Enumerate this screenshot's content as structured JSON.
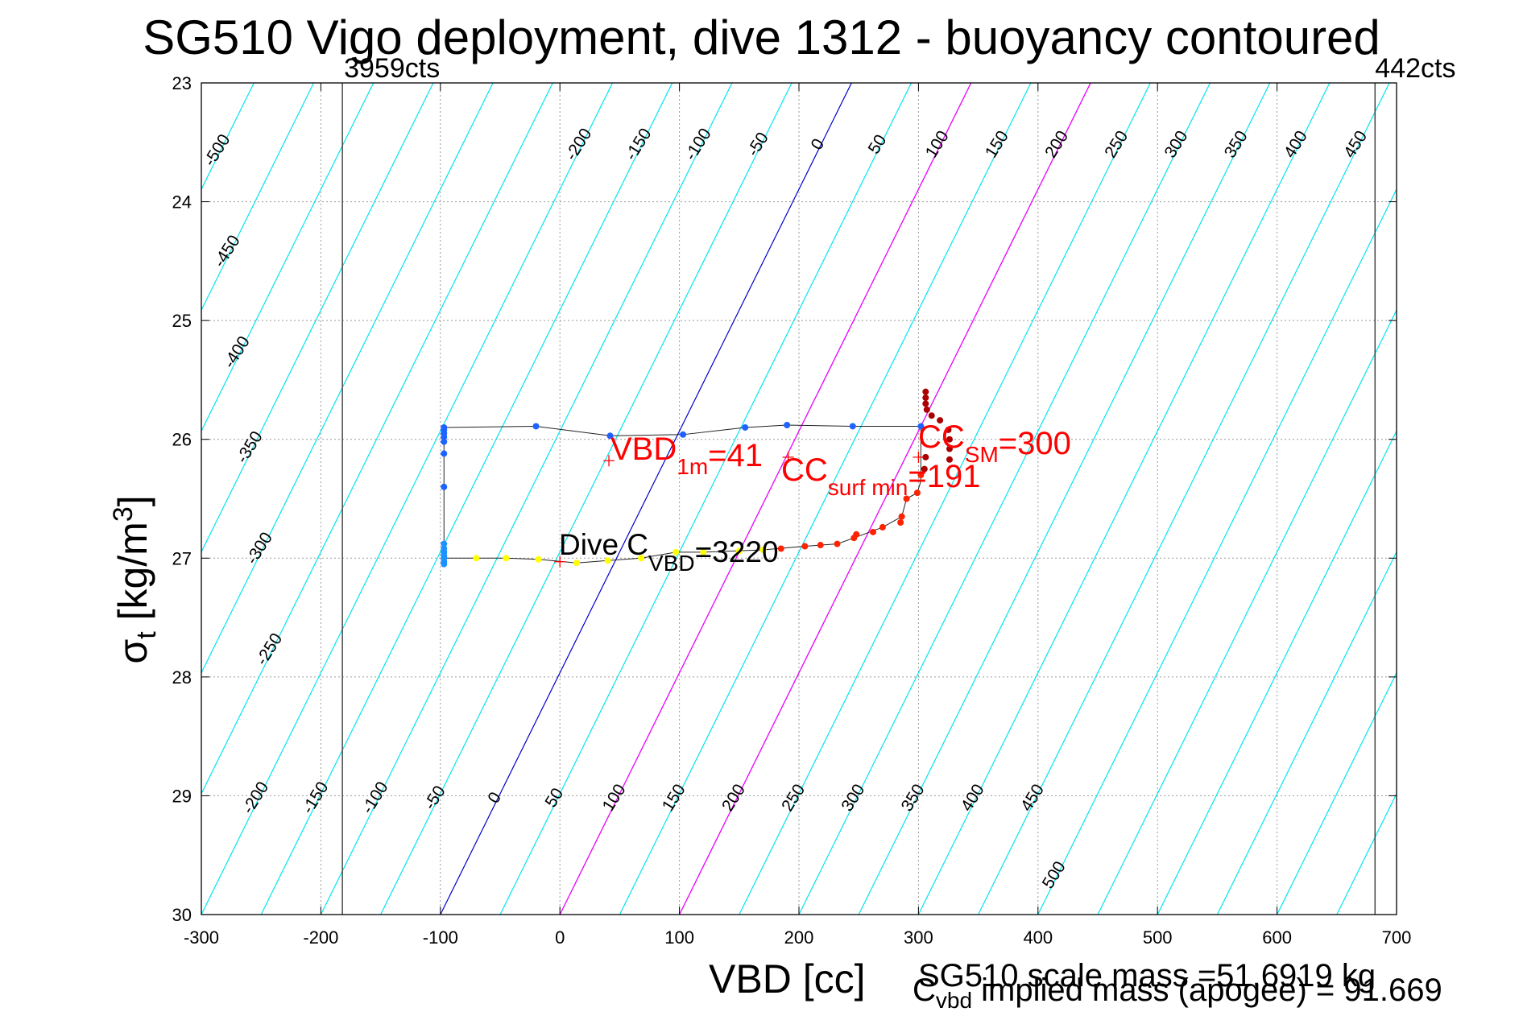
{
  "title": "SG510 Vigo deployment, dive 1312 - buoyancy contoured",
  "footer": {
    "scale_mass": "SG510 scale mass =51.6919 kg",
    "implied_mass_c": "C",
    "implied_mass_sub": "vbd",
    "implied_mass_rest": " implied mass (apogee) = 91.669"
  },
  "colors": {
    "contour": "#00e5ee",
    "zero_line": "#0000cc",
    "magenta_line": "#ff00ff",
    "grid": "#9a9a9a",
    "axis": "#000000",
    "annotation_red": "#ff0000",
    "descent_points": "#1e63ff",
    "ascent_points": "#ffff00"
  },
  "chart_data": {
    "type": "scatter",
    "title": "SG510 Vigo deployment, dive 1312 - buoyancy contoured",
    "xlabel": "VBD [cc]",
    "ylabel_main": "σ",
    "ylabel_sub": "t",
    "ylabel_unit": "[kg/m",
    "ylabel_sup": "3",
    "ylabel_close": "]",
    "xlim": [
      -300,
      700
    ],
    "ylim": [
      23,
      30
    ],
    "y_reversed": true,
    "grid": true,
    "xticks": [
      -300,
      -200,
      -100,
      0,
      100,
      200,
      300,
      400,
      500,
      600,
      700
    ],
    "yticks": [
      23,
      24,
      25,
      26,
      27,
      28,
      29,
      30
    ],
    "vertical_limits": [
      {
        "x": -182,
        "label": "3959cts"
      },
      {
        "x": 682,
        "label": "442cts"
      }
    ],
    "buoyancy_contours": {
      "levels": [
        -500,
        -450,
        -400,
        -350,
        -300,
        -250,
        -200,
        -150,
        -100,
        -50,
        0,
        50,
        100,
        150,
        200,
        250,
        300,
        350,
        400,
        450,
        500
      ],
      "vbd_at_sigma": [
        {
          "sigma": 23,
          "vbd_at_zero": 244
        },
        {
          "sigma": 30,
          "vbd_at_zero": -100
        }
      ],
      "vbd_spacing_per_50": 50,
      "special_lines": [
        {
          "color": "magenta",
          "vbd_at_sigma23": 344,
          "vbd_at_sigma30": 0
        },
        {
          "color": "magenta",
          "vbd_at_sigma23": 444,
          "vbd_at_sigma30": 100
        }
      ],
      "labels_top_row": {
        "sigma": 23.5,
        "levels": [
          -200,
          -150,
          -100,
          -50,
          0,
          50,
          100,
          150,
          200,
          250,
          300,
          350,
          400,
          450
        ]
      },
      "labels_left_column": [
        {
          "level": -500,
          "sigma": 23.55
        },
        {
          "level": -450,
          "sigma": 24.4
        },
        {
          "level": -400,
          "sigma": 25.25
        },
        {
          "level": -350,
          "sigma": 26.05
        },
        {
          "level": -300,
          "sigma": 26.9
        },
        {
          "level": -250,
          "sigma": 27.75
        }
      ],
      "labels_bottom_row": {
        "sigma": 29.0,
        "levels": [
          -200,
          -150,
          -100,
          -50,
          0,
          50,
          100,
          150,
          200,
          250,
          300,
          350,
          400,
          450
        ]
      },
      "label_500": {
        "level": 500,
        "sigma": 29.65
      }
    },
    "series": [
      {
        "name": "descent",
        "color": "#1e63ff",
        "points": [
          [
            -97,
            25.9
          ],
          [
            -20,
            25.89
          ],
          [
            42,
            25.97
          ],
          [
            103,
            25.96
          ],
          [
            155,
            25.9
          ],
          [
            190,
            25.88
          ],
          [
            245,
            25.89
          ],
          [
            302,
            25.89
          ],
          [
            -97,
            25.92
          ],
          [
            -97,
            25.95
          ],
          [
            -97,
            25.98
          ],
          [
            -97,
            26.02
          ],
          [
            -97,
            26.12
          ],
          [
            -97,
            26.4
          ]
        ]
      },
      {
        "name": "bottom",
        "color": "#1e90ff",
        "points": [
          [
            -97,
            26.88
          ],
          [
            -97,
            26.92
          ],
          [
            -97,
            26.95
          ],
          [
            -97,
            26.98
          ],
          [
            -97,
            27.0
          ],
          [
            -97,
            27.03
          ],
          [
            -97,
            27.05
          ]
        ]
      },
      {
        "name": "ascent",
        "color": "#ffff00",
        "points": [
          [
            -70,
            27.0
          ],
          [
            -45,
            27.0
          ],
          [
            -18,
            27.01
          ],
          [
            14,
            27.04
          ],
          [
            40,
            27.02
          ],
          [
            68,
            27.0
          ],
          [
            97,
            26.95
          ],
          [
            120,
            26.95
          ],
          [
            150,
            26.94
          ],
          [
            170,
            26.93
          ]
        ]
      },
      {
        "name": "near_surface",
        "color": "#ff2200",
        "points": [
          [
            185,
            26.92
          ],
          [
            205,
            26.9
          ],
          [
            218,
            26.89
          ],
          [
            232,
            26.88
          ],
          [
            246,
            26.83
          ],
          [
            248,
            26.8
          ],
          [
            262,
            26.78
          ],
          [
            270,
            26.74
          ],
          [
            285,
            26.7
          ],
          [
            286,
            26.65
          ],
          [
            290,
            26.5
          ],
          [
            299,
            26.45
          ],
          [
            302,
            26.3
          ]
        ]
      },
      {
        "name": "surface",
        "color": "#aa0000",
        "points": [
          [
            306,
            25.6
          ],
          [
            306,
            25.65
          ],
          [
            306,
            25.7
          ],
          [
            307,
            25.75
          ],
          [
            311,
            25.8
          ],
          [
            318,
            25.84
          ],
          [
            325,
            25.92
          ],
          [
            326,
            26.0
          ],
          [
            326,
            26.08
          ],
          [
            326,
            26.17
          ],
          [
            306,
            26.15
          ],
          [
            305,
            26.25
          ]
        ]
      }
    ],
    "trace_line": [
      [
        -97,
        25.9
      ],
      [
        -20,
        25.89
      ],
      [
        42,
        25.97
      ],
      [
        103,
        25.96
      ],
      [
        155,
        25.9
      ],
      [
        190,
        25.88
      ],
      [
        245,
        25.89
      ],
      [
        302,
        25.89
      ],
      [
        302,
        26.35
      ],
      [
        299,
        26.45
      ],
      [
        290,
        26.5
      ],
      [
        286,
        26.65
      ],
      [
        270,
        26.74
      ],
      [
        246,
        26.83
      ],
      [
        232,
        26.88
      ],
      [
        205,
        26.9
      ],
      [
        170,
        26.93
      ],
      [
        120,
        26.95
      ],
      [
        97,
        26.95
      ],
      [
        68,
        27.0
      ],
      [
        40,
        27.02
      ],
      [
        14,
        27.04
      ],
      [
        -18,
        27.01
      ],
      [
        -45,
        27.0
      ],
      [
        -70,
        27.0
      ],
      [
        -97,
        27.0
      ],
      [
        -97,
        26.4
      ],
      [
        -97,
        25.9
      ]
    ],
    "markers": [
      {
        "name": "vbd_1m",
        "x": 41,
        "y": 26.18
      },
      {
        "name": "cc_surf_min",
        "x": 191,
        "y": 26.15
      },
      {
        "name": "cc_sm",
        "x": 300,
        "y": 26.15
      },
      {
        "name": "dive_cvbd",
        "x": 0,
        "y": 27.03
      }
    ],
    "annotations": {
      "vbd_1m": {
        "main": "VBD",
        "sub": "1m",
        "rest": "=41"
      },
      "cc_surf_min": {
        "main": "CC",
        "sub": "surf min",
        "rest": "=191"
      },
      "cc_sm": {
        "main": "CC",
        "sub": "SM",
        "rest": "=300"
      },
      "dive_cvbd": {
        "main": "Dive C",
        "sub": "VBD",
        "rest": "=3220"
      }
    }
  }
}
